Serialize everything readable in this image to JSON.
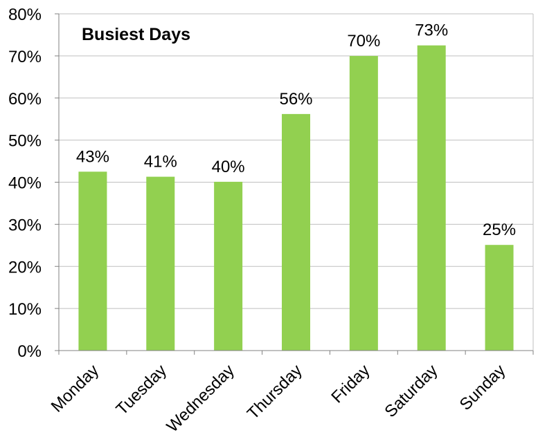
{
  "chart_data": {
    "type": "bar",
    "title": "Busiest Days",
    "categories": [
      "Monday",
      "Tuesday",
      "Wednesday",
      "Thursday",
      "Friday",
      "Saturday",
      "Sunday"
    ],
    "values": [
      42.5,
      41.3,
      40.1,
      56.2,
      70.0,
      72.5,
      25.1
    ],
    "data_labels": [
      "43%",
      "41%",
      "40%",
      "56%",
      "70%",
      "73%",
      "25%"
    ],
    "ylim": [
      0,
      80
    ],
    "yticks": [
      0,
      10,
      20,
      30,
      40,
      50,
      60,
      70,
      80
    ],
    "ytick_labels": [
      "0%",
      "10%",
      "20%",
      "30%",
      "40%",
      "50%",
      "60%",
      "70%",
      "80%"
    ],
    "xlabel": "",
    "ylabel": "",
    "grid": true,
    "legend": "none",
    "bar_color": "#92d050",
    "grid_color": "#bfbfbf",
    "axis_color": "#808080"
  }
}
